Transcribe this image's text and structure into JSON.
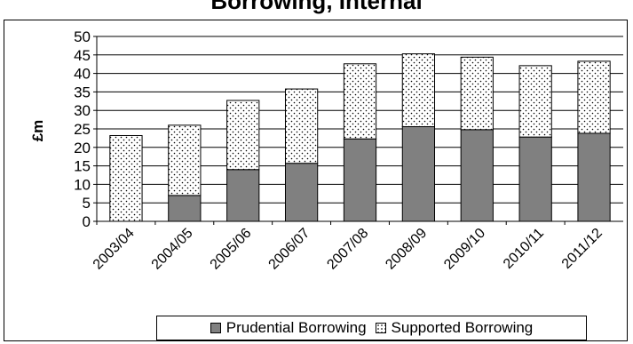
{
  "title_visible": "Borrowing, Internal",
  "chart_data": {
    "type": "bar",
    "stacked": true,
    "categories": [
      "2003/04",
      "2004/05",
      "2005/06",
      "2006/07",
      "2007/08",
      "2008/09",
      "2009/10",
      "2010/11",
      "2011/12"
    ],
    "series": [
      {
        "name": "Prudential Borrowing",
        "values": [
          0,
          7,
          14,
          15.7,
          22.3,
          25.6,
          24.8,
          22.8,
          23.8
        ],
        "color": "#808080",
        "pattern": "solid"
      },
      {
        "name": "Supported Borrowing",
        "values": [
          23.2,
          19,
          18.7,
          20.1,
          20.3,
          19.7,
          19.6,
          19.3,
          19.5
        ],
        "color": "#ffffff",
        "pattern": "dots"
      }
    ],
    "ylabel": "£m",
    "xlabel": "",
    "ylim": [
      0,
      50
    ],
    "yticks": [
      0,
      5,
      10,
      15,
      20,
      25,
      30,
      35,
      40,
      45,
      50
    ],
    "grid": true,
    "legend": "bottom"
  }
}
